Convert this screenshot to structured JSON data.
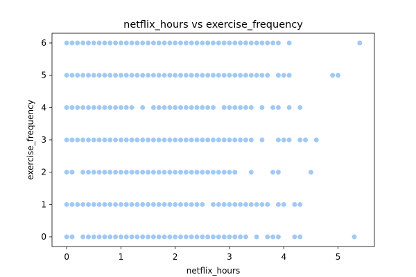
{
  "chart_data": {
    "type": "scatter",
    "title": "netflix_hours vs exercise_frequency",
    "xlabel": "netflix_hours",
    "ylabel": "exercise_frequency",
    "xlim": [
      -0.27,
      5.67
    ],
    "ylim": [
      -0.3,
      6.3
    ],
    "xticks": [
      "0",
      "1",
      "2",
      "3",
      "4",
      "5"
    ],
    "yticks": [
      "0",
      "1",
      "2",
      "3",
      "4",
      "5",
      "6"
    ],
    "grid": false,
    "legend": "none",
    "marker_color": "#a1c9f4",
    "series": [
      {
        "y": 6,
        "x": [
          0.0,
          0.1,
          0.2,
          0.3,
          0.4,
          0.5,
          0.6,
          0.7,
          0.8,
          0.9,
          1.0,
          1.1,
          1.2,
          1.3,
          1.4,
          1.5,
          1.6,
          1.7,
          1.8,
          1.9,
          2.0,
          2.1,
          2.2,
          2.3,
          2.4,
          2.5,
          2.6,
          2.7,
          2.8,
          2.9,
          3.0,
          3.1,
          3.2,
          3.3,
          3.4,
          3.5,
          3.6,
          3.7,
          3.8,
          3.9,
          4.1,
          5.4
        ]
      },
      {
        "y": 5,
        "x": [
          0.0,
          0.1,
          0.2,
          0.3,
          0.4,
          0.5,
          0.6,
          0.7,
          0.8,
          0.9,
          1.0,
          1.1,
          1.2,
          1.3,
          1.4,
          1.5,
          1.6,
          1.7,
          1.8,
          1.9,
          2.0,
          2.1,
          2.2,
          2.3,
          2.4,
          2.5,
          2.6,
          2.7,
          2.8,
          2.9,
          3.0,
          3.1,
          3.2,
          3.3,
          3.4,
          3.5,
          3.6,
          3.7,
          3.9,
          4.0,
          4.1,
          4.9,
          5.0
        ]
      },
      {
        "y": 4,
        "x": [
          0.0,
          0.1,
          0.2,
          0.3,
          0.4,
          0.5,
          0.6,
          0.7,
          0.8,
          0.9,
          1.0,
          1.1,
          1.2,
          1.4,
          1.6,
          1.7,
          1.8,
          1.9,
          2.0,
          2.1,
          2.2,
          2.3,
          2.4,
          2.5,
          2.6,
          2.7,
          2.9,
          3.0,
          3.1,
          3.2,
          3.3,
          3.4,
          3.6,
          3.8,
          3.9,
          4.1,
          4.3
        ]
      },
      {
        "y": 3,
        "x": [
          0.0,
          0.1,
          0.2,
          0.3,
          0.4,
          0.5,
          0.6,
          0.7,
          0.8,
          0.9,
          1.0,
          1.1,
          1.2,
          1.3,
          1.4,
          1.5,
          1.6,
          1.7,
          1.8,
          1.9,
          2.0,
          2.1,
          2.2,
          2.3,
          2.4,
          2.5,
          2.6,
          2.7,
          2.8,
          2.9,
          3.0,
          3.1,
          3.2,
          3.3,
          3.4,
          3.6,
          3.9,
          4.0,
          4.1,
          4.3,
          4.4,
          4.6
        ]
      },
      {
        "y": 2,
        "x": [
          0.0,
          0.1,
          0.3,
          0.4,
          0.5,
          0.6,
          0.7,
          0.8,
          0.9,
          1.0,
          1.1,
          1.2,
          1.3,
          1.4,
          1.5,
          1.6,
          1.7,
          1.8,
          1.9,
          2.0,
          2.1,
          2.2,
          2.3,
          2.4,
          2.5,
          2.6,
          2.7,
          2.8,
          2.9,
          3.0,
          3.1,
          3.4,
          3.8,
          3.9,
          4.5
        ]
      },
      {
        "y": 1,
        "x": [
          0.0,
          0.1,
          0.2,
          0.3,
          0.4,
          0.5,
          0.6,
          0.7,
          0.8,
          0.9,
          1.0,
          1.1,
          1.2,
          1.3,
          1.4,
          1.5,
          1.6,
          1.7,
          1.8,
          1.9,
          2.0,
          2.1,
          2.2,
          2.3,
          2.4,
          2.5,
          2.7,
          2.8,
          2.9,
          3.0,
          3.1,
          3.2,
          3.3,
          3.4,
          3.5,
          3.6,
          3.7,
          3.9,
          4.0,
          4.2,
          4.3
        ]
      },
      {
        "y": 0,
        "x": [
          0.0,
          0.1,
          0.3,
          0.4,
          0.5,
          0.6,
          0.7,
          0.8,
          0.9,
          1.0,
          1.1,
          1.2,
          1.3,
          1.4,
          1.5,
          1.6,
          1.7,
          1.8,
          1.9,
          2.0,
          2.1,
          2.2,
          2.3,
          2.4,
          2.5,
          2.6,
          2.7,
          2.8,
          2.9,
          3.0,
          3.1,
          3.2,
          3.3,
          3.5,
          3.7,
          3.8,
          3.9,
          4.2,
          4.3,
          5.3
        ]
      }
    ]
  }
}
